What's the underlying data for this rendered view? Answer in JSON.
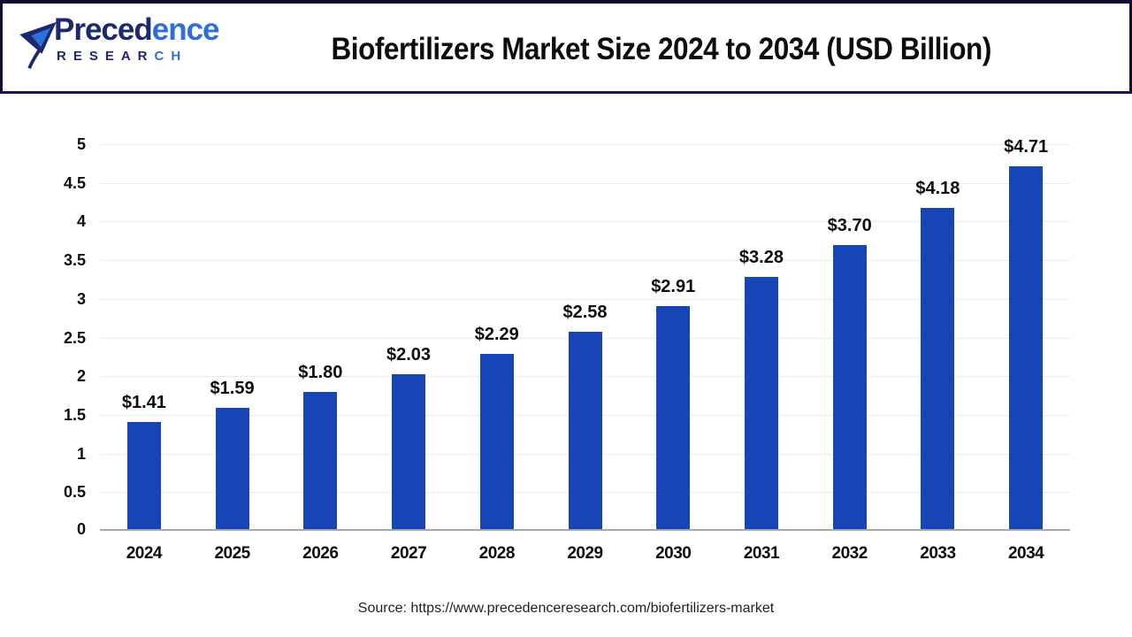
{
  "header": {
    "logo": {
      "brand_primary": "Preced",
      "brand_secondary": "ence",
      "subtitle_primary": "RESEAR",
      "subtitle_secondary": "CH"
    },
    "title": "Biofertilizers Market Size 2024 to 2034 (USD Billion)"
  },
  "chart_data": {
    "type": "bar",
    "title": "Biofertilizers Market Size 2024 to 2034 (USD Billion)",
    "categories": [
      "2024",
      "2025",
      "2026",
      "2027",
      "2028",
      "2029",
      "2030",
      "2031",
      "2032",
      "2033",
      "2034"
    ],
    "values": [
      1.41,
      1.59,
      1.8,
      2.03,
      2.29,
      2.58,
      2.91,
      3.28,
      3.7,
      4.18,
      4.71
    ],
    "values_display": [
      "$1.41",
      "$1.59",
      "$1.80",
      "$2.03",
      "$2.29",
      "$2.58",
      "$2.91",
      "$3.28",
      "$3.70",
      "$4.18",
      "$4.71"
    ],
    "xlabel": "",
    "ylabel": "",
    "ylim": [
      0,
      5
    ],
    "yticks": [
      0,
      0.5,
      1,
      1.5,
      2,
      2.5,
      3,
      3.5,
      4,
      4.5,
      5
    ],
    "ytick_labels": [
      "0",
      "0.5",
      "1",
      "1.5",
      "2",
      "2.5",
      "3",
      "3.5",
      "4",
      "4.5",
      "5"
    ],
    "grid": true,
    "legend": false,
    "bar_color": "#1745b5"
  },
  "footer": {
    "source": "Source: https://www.precedenceresearch.com/biofertilizers-market"
  },
  "colors": {
    "bar": "#1745b5",
    "logo_navy": "#1b2a70",
    "logo_blue": "#2e6fd8",
    "frame_border": "#0d0d33",
    "header_separator": "#181850",
    "gridline": "#ebebeb",
    "axis_baseline": "#a8a8a8"
  }
}
